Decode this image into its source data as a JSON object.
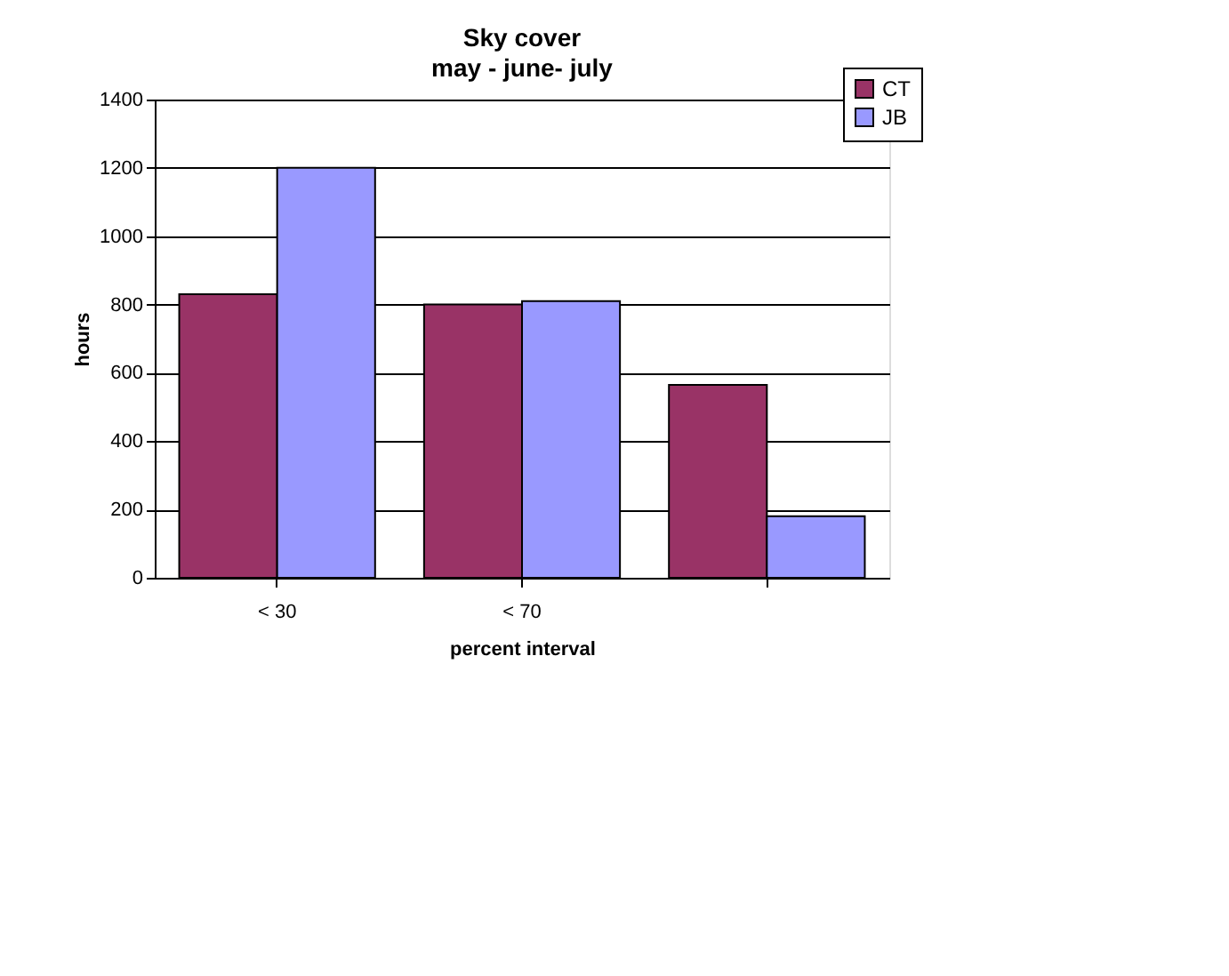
{
  "chart_data": {
    "type": "bar",
    "title": "Sky cover",
    "subtitle": "may - june- july",
    "xlabel": "percent interval",
    "ylabel": "hours",
    "categories": [
      "< 30",
      "< 70",
      null
    ],
    "series": [
      {
        "name": "CT",
        "color": "#993366",
        "values": [
          830,
          800,
          565
        ]
      },
      {
        "name": "JB",
        "color": "#9999ff",
        "values": [
          1200,
          810,
          180
        ]
      }
    ],
    "ylim": [
      0,
      1400
    ],
    "yticks": [
      0,
      200,
      400,
      600,
      800,
      1000,
      1200,
      1400
    ],
    "grid": "y",
    "legend": "top right"
  }
}
